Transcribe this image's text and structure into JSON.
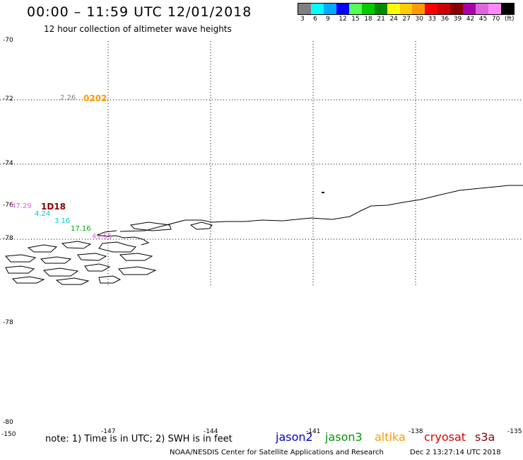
{
  "header": {
    "title": "00:00 – 11:59 UTC 12/01/2018",
    "subtitle": "12 hour collection of altimeter wave heights"
  },
  "legend": {
    "colors": [
      "#808080",
      "#00ffff",
      "#00aaff",
      "#0000ff",
      "#55ff55",
      "#00cc00",
      "#008800",
      "#ffff00",
      "#ffcc00",
      "#ff9900",
      "#ff0000",
      "#cc0000",
      "#880000",
      "#aa00aa",
      "#dd66dd",
      "#ff88ff",
      "#000000"
    ],
    "labels": [
      "3",
      "6",
      "9",
      "12",
      "15",
      "18",
      "21",
      "24",
      "27",
      "30",
      "33",
      "36",
      "39",
      "42",
      "45",
      "70",
      "(ft)"
    ]
  },
  "axes": {
    "lat_labels": [
      "-70",
      "-72",
      "-74",
      "-76",
      "-78",
      "-78",
      "-80"
    ],
    "lon_labels": [
      "-150",
      "-147",
      "-144",
      "-141",
      "-138",
      "-135"
    ]
  },
  "observations": {
    "wave_heights": [
      {
        "value": "2.26",
        "color": "#808080"
      },
      {
        "value": "47.29",
        "color": "#dd66dd"
      },
      {
        "value": "4.24",
        "color": "#00cccc"
      },
      {
        "value": "3.16",
        "color": "#00cccc"
      },
      {
        "value": "17.16",
        "color": "#00aa00"
      },
      {
        "value": "49.55",
        "color": "#dd66dd"
      }
    ],
    "time_tags": [
      {
        "value": "0202",
        "color": "#ff9900"
      },
      {
        "value": "1D18",
        "color": "#880000"
      }
    ]
  },
  "footer": {
    "note": "note: 1) Time is in UTC; 2) SWH is in feet",
    "satellites": [
      {
        "name": "jason2",
        "color": "#0000cc"
      },
      {
        "name": "jason3",
        "color": "#009900"
      },
      {
        "name": "altika",
        "color": "#ff9900"
      },
      {
        "name": "cryosat",
        "color": "#dd0000"
      },
      {
        "name": "s3a",
        "color": "#880000"
      }
    ],
    "credit": "NOAA/NESDIS Center for Satellite Applications and Research",
    "timestamp": "Dec  2 13:27:14 UTC 2018"
  }
}
